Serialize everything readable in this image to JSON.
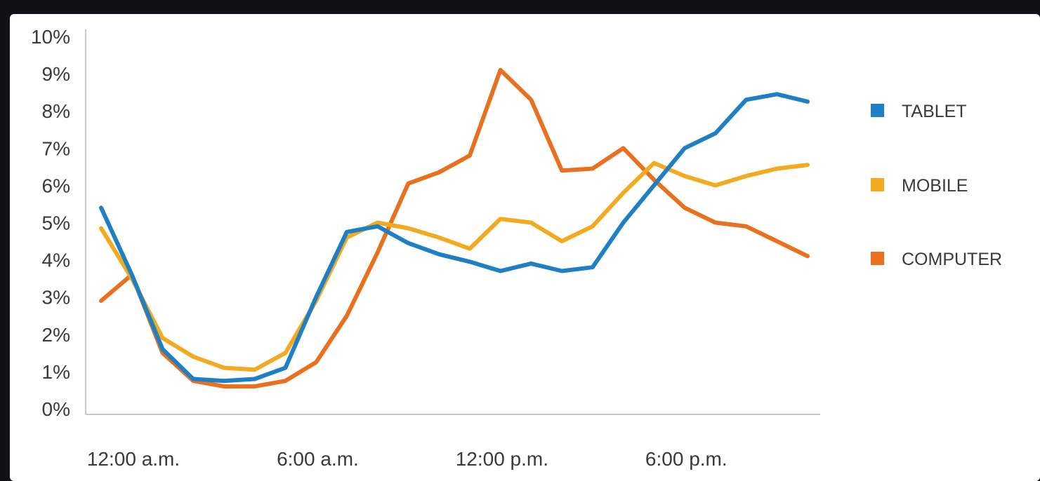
{
  "chart_data": {
    "type": "line",
    "ylim": [
      0,
      10
    ],
    "y_ticks": [
      "0%",
      "1%",
      "2%",
      "3%",
      "4%",
      "5%",
      "6%",
      "7%",
      "8%",
      "9%",
      "10%"
    ],
    "y_tick_values": [
      0,
      1,
      2,
      3,
      4,
      5,
      6,
      7,
      8,
      9,
      10
    ],
    "x": [
      0,
      1,
      2,
      3,
      4,
      5,
      6,
      7,
      8,
      9,
      10,
      11,
      12,
      13,
      14,
      15,
      16,
      17,
      18,
      19,
      20,
      21,
      22,
      23
    ],
    "xlim": [
      0,
      23
    ],
    "x_ticks": [
      "12:00 a.m.",
      "6:00 a.m.",
      "12:00 p.m.",
      "6:00 p.m."
    ],
    "x_tick_values": [
      0,
      6,
      12,
      18
    ],
    "grid": false,
    "legend_position": "right",
    "series": [
      {
        "name": "TABLET",
        "color": "#1f7fc4",
        "values": [
          5.4,
          3.6,
          1.6,
          0.8,
          0.75,
          0.8,
          1.1,
          3.0,
          4.75,
          4.9,
          4.45,
          4.15,
          3.95,
          3.7,
          3.9,
          3.7,
          3.8,
          5.0,
          6.0,
          7.0,
          7.4,
          8.3,
          8.45,
          8.25
        ]
      },
      {
        "name": "MOBILE",
        "color": "#f2aa20",
        "values": [
          4.85,
          3.5,
          1.9,
          1.4,
          1.1,
          1.05,
          1.5,
          2.9,
          4.6,
          5.0,
          4.85,
          4.6,
          4.3,
          5.1,
          5.0,
          4.5,
          4.9,
          5.8,
          6.6,
          6.25,
          6.0,
          6.25,
          6.45,
          6.55
        ]
      },
      {
        "name": "COMPUTER",
        "color": "#e8701e",
        "values": [
          2.9,
          3.6,
          1.5,
          0.75,
          0.6,
          0.6,
          0.75,
          1.25,
          2.5,
          4.2,
          6.05,
          6.35,
          6.8,
          9.1,
          8.3,
          6.4,
          6.45,
          7.0,
          6.15,
          5.4,
          5.0,
          4.9,
          4.5,
          4.1
        ]
      }
    ]
  }
}
